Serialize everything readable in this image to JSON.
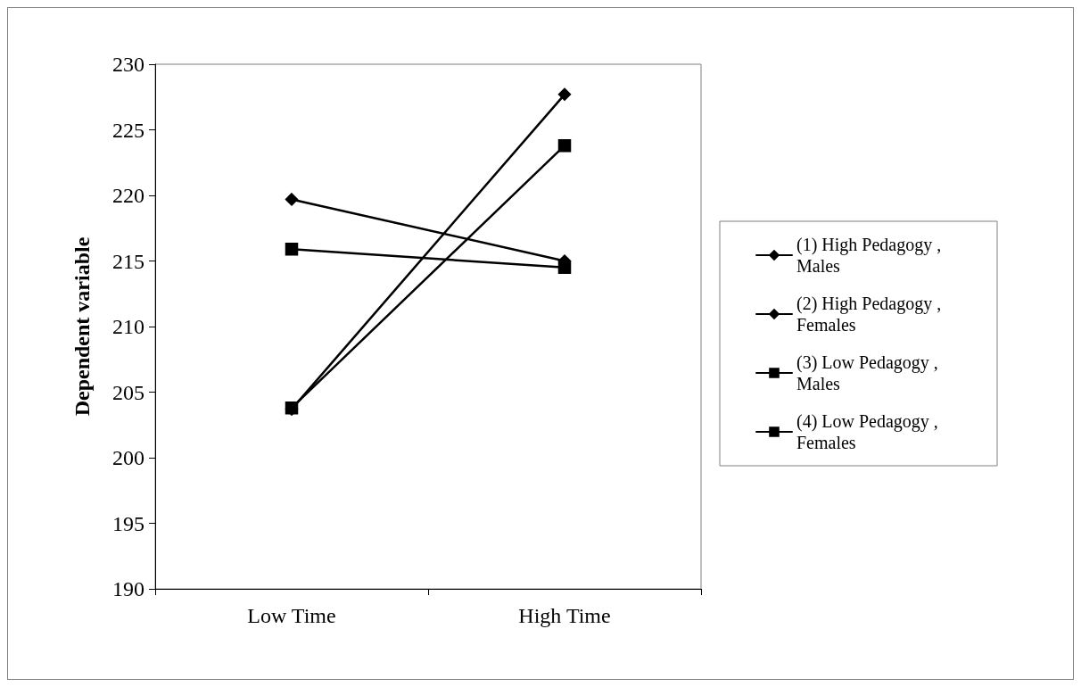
{
  "chart_data": {
    "type": "line",
    "ylabel": "Dependent variable",
    "categories": [
      "Low Time",
      "High Time"
    ],
    "ylim": [
      190,
      230
    ],
    "yticks": [
      190,
      195,
      200,
      205,
      210,
      215,
      220,
      225,
      230
    ],
    "grid": false,
    "legend": "right",
    "line_style": "solid",
    "series": [
      {
        "name": "(1) High Pedagogy , Males",
        "color": "#000000",
        "marker": "diamond",
        "values": [
          219.7,
          215.0
        ]
      },
      {
        "name": "(2) High Pedagogy , Females",
        "color": "#000000",
        "marker": "diamond",
        "values": [
          203.7,
          227.7
        ]
      },
      {
        "name": "(3) Low Pedagogy , Males",
        "color": "#000000",
        "marker": "square",
        "values": [
          215.9,
          214.5
        ]
      },
      {
        "name": "(4) Low Pedagogy , Females",
        "color": "#000000",
        "marker": "square",
        "values": [
          203.8,
          223.8
        ]
      }
    ]
  }
}
